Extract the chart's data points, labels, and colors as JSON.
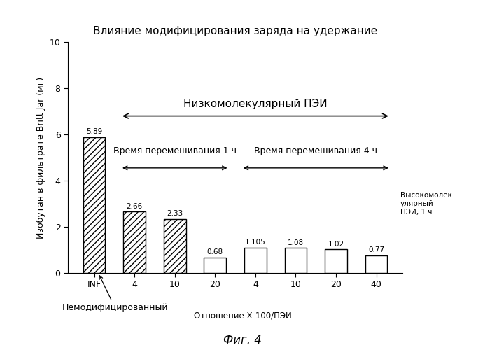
{
  "title": "Влияние модифицирования заряда на удержание",
  "ylabel": "Изобутан в фильтрате Britt Jar (мг)",
  "xlabel": "Отношение Х-100/ПЭИ",
  "caption": "Фиг. 4",
  "categories": [
    "INF",
    "4",
    "10",
    "20",
    "4",
    "10",
    "20",
    "40"
  ],
  "values": [
    5.89,
    2.66,
    2.33,
    0.68,
    1.105,
    1.08,
    1.02,
    0.77
  ],
  "value_labels": [
    "5.89",
    "2.66",
    "2.33",
    "0.68",
    "1.105",
    "1.08",
    "1.02",
    "0.77"
  ],
  "hatched": [
    true,
    true,
    true,
    false,
    false,
    false,
    false,
    false
  ],
  "ylim": [
    0,
    10
  ],
  "yticks": [
    0,
    2,
    4,
    6,
    8,
    10
  ],
  "bar_color": "#ffffff",
  "bar_edge_color": "#000000",
  "hatch_pattern": "////",
  "annotation_unmod": "Немодифицированный",
  "annotation_lowmol": "Низкомолекулярный ПЭИ",
  "annotation_mix1h": "Время перемешивания 1 ч",
  "annotation_mix4h": "Время перемешивания 4 ч",
  "annotation_highmol": "Высокомолек\nулярный\nПЭИ, 1 ч",
  "background_color": "#ffffff",
  "text_color": "#000000"
}
